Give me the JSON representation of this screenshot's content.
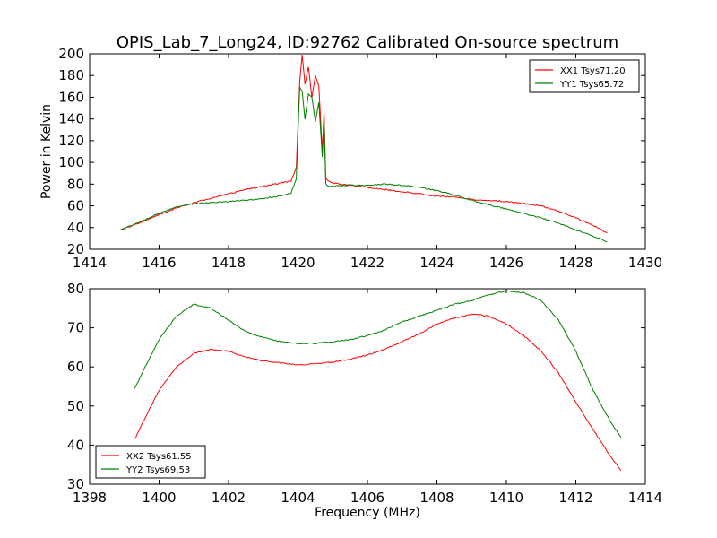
{
  "chart_data": [
    {
      "type": "line",
      "title": "OPIS_Lab_7_Long24, ID:92762 Calibrated On-source spectrum",
      "xlabel": "",
      "ylabel": "Power in Kelvin",
      "xlim": [
        1414,
        1430
      ],
      "ylim": [
        20,
        200
      ],
      "xticks": [
        1414,
        1416,
        1418,
        1420,
        1422,
        1424,
        1426,
        1428,
        1430
      ],
      "yticks": [
        20,
        40,
        60,
        80,
        100,
        120,
        140,
        160,
        180,
        200
      ],
      "grid": false,
      "legend_position": "upper right",
      "series": [
        {
          "name": "XX1 Tsys71.20",
          "color": "#ff0000",
          "x": [
            1414.9,
            1415.5,
            1416.0,
            1416.5,
            1417.0,
            1417.5,
            1418.0,
            1418.5,
            1419.0,
            1419.5,
            1419.8,
            1419.95,
            1420.05,
            1420.12,
            1420.2,
            1420.3,
            1420.4,
            1420.5,
            1420.6,
            1420.7,
            1420.75,
            1420.8,
            1420.9,
            1421.0,
            1421.5,
            1422.0,
            1422.5,
            1423.0,
            1423.5,
            1424.0,
            1424.5,
            1425.0,
            1425.5,
            1426.0,
            1426.5,
            1427.0,
            1427.5,
            1428.0,
            1428.5,
            1428.9
          ],
          "y": [
            38,
            45,
            52,
            58,
            63,
            67,
            71,
            75,
            78,
            81,
            83,
            95,
            175,
            199,
            172,
            188,
            160,
            180,
            170,
            110,
            148,
            85,
            82,
            81,
            79,
            77,
            75,
            73,
            71,
            69,
            68,
            66,
            65,
            64,
            62,
            60,
            55,
            49,
            42,
            35
          ]
        },
        {
          "name": "YY1 Tsys65.72",
          "color": "#008000",
          "x": [
            1414.9,
            1415.5,
            1416.0,
            1416.5,
            1417.0,
            1417.5,
            1418.0,
            1418.5,
            1419.0,
            1419.5,
            1419.8,
            1419.95,
            1420.05,
            1420.12,
            1420.2,
            1420.3,
            1420.4,
            1420.5,
            1420.6,
            1420.7,
            1420.75,
            1420.8,
            1420.9,
            1421.0,
            1421.5,
            1422.0,
            1422.5,
            1423.0,
            1423.5,
            1424.0,
            1424.5,
            1425.0,
            1425.5,
            1426.0,
            1426.5,
            1427.0,
            1427.5,
            1428.0,
            1428.5,
            1428.9
          ],
          "y": [
            38,
            46,
            53,
            59,
            62,
            63,
            64,
            65,
            67,
            69,
            72,
            85,
            170,
            165,
            140,
            163,
            160,
            137,
            155,
            105,
            140,
            80,
            78,
            78,
            79,
            79,
            80,
            79,
            77,
            74,
            70,
            65,
            61,
            57,
            53,
            49,
            44,
            38,
            32,
            27
          ]
        }
      ]
    },
    {
      "type": "line",
      "title": "",
      "xlabel": "Frequency (MHz)",
      "ylabel": "",
      "xlim": [
        1398,
        1414
      ],
      "ylim": [
        30,
        80
      ],
      "xticks": [
        1398,
        1400,
        1402,
        1404,
        1406,
        1408,
        1410,
        1412,
        1414
      ],
      "yticks": [
        30,
        40,
        50,
        60,
        70,
        80
      ],
      "grid": false,
      "legend_position": "lower left",
      "series": [
        {
          "name": "XX2 Tsys61.55",
          "color": "#ff0000",
          "x": [
            1399.3,
            1399.6,
            1400.0,
            1400.5,
            1401.0,
            1401.5,
            1402.0,
            1402.5,
            1403.0,
            1403.5,
            1404.0,
            1404.5,
            1405.0,
            1405.5,
            1406.0,
            1406.5,
            1407.0,
            1407.5,
            1408.0,
            1408.5,
            1409.0,
            1409.5,
            1410.0,
            1410.5,
            1411.0,
            1411.5,
            1412.0,
            1412.5,
            1413.0,
            1413.3
          ],
          "y": [
            41.5,
            47,
            54,
            60,
            63.5,
            64.5,
            64,
            62.5,
            61.5,
            61,
            60.5,
            60.8,
            61.2,
            62,
            63,
            64.5,
            66.5,
            68.5,
            71,
            72.5,
            73.5,
            73,
            71,
            68,
            64,
            58.5,
            51,
            44,
            37,
            33.5
          ]
        },
        {
          "name": "YY2 Tsys69.53",
          "color": "#008000",
          "x": [
            1399.3,
            1399.6,
            1400.0,
            1400.5,
            1401.0,
            1401.5,
            1402.0,
            1402.5,
            1403.0,
            1403.5,
            1404.0,
            1404.5,
            1405.0,
            1405.5,
            1406.0,
            1406.5,
            1407.0,
            1407.5,
            1408.0,
            1408.5,
            1409.0,
            1409.5,
            1410.0,
            1410.5,
            1411.0,
            1411.5,
            1412.0,
            1412.5,
            1413.0,
            1413.3
          ],
          "y": [
            54.5,
            60,
            67,
            73,
            76,
            75,
            72,
            69,
            67.5,
            66.5,
            66,
            66,
            66.5,
            67,
            68,
            69.5,
            71.5,
            73,
            74.5,
            76,
            77,
            78.5,
            79.5,
            79,
            77,
            72,
            64,
            54,
            46,
            42
          ]
        }
      ]
    }
  ]
}
